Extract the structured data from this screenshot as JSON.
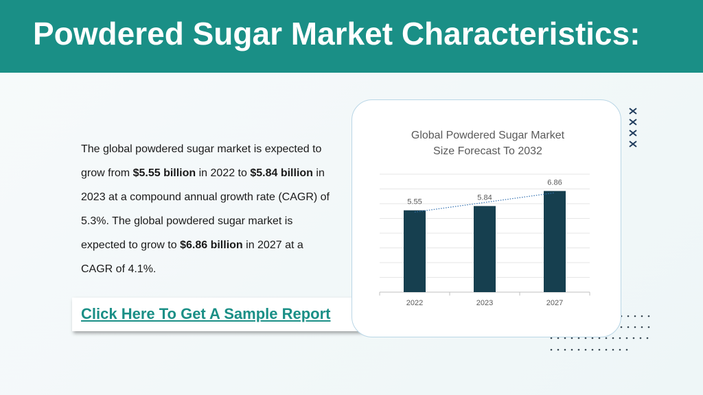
{
  "header": {
    "title": "Powdered Sugar Market Characteristics:"
  },
  "paragraph": [
    {
      "text": "The global powdered sugar market is expected to grow from ",
      "bold": false
    },
    {
      "text": "$5.55 billion",
      "bold": true
    },
    {
      "text": " in 2022 to ",
      "bold": false
    },
    {
      "text": "$5.84 billion",
      "bold": true
    },
    {
      "text": " in 2023 at a compound annual growth rate (CAGR) of 5.3%. The global powdered sugar market is expected to grow to ",
      "bold": false
    },
    {
      "text": "$6.86 billion",
      "bold": true
    },
    {
      "text": " in 2027 at a CAGR of 4.1%.",
      "bold": false
    }
  ],
  "link": {
    "text": "Click Here To Get A Sample Report"
  },
  "chart_data": {
    "type": "bar",
    "title": "Global Powdered Sugar Market Size Forecast To 2032",
    "categories": [
      "2022",
      "2023",
      "2027"
    ],
    "values": [
      5.55,
      5.84,
      6.86
    ],
    "color": "#163f4f",
    "ylim": [
      0,
      8
    ],
    "yticks": [
      0,
      1,
      2,
      3,
      4,
      5,
      6,
      7,
      8
    ],
    "grid": true,
    "trendline": true,
    "trendline_color": "#2f6fb0"
  }
}
